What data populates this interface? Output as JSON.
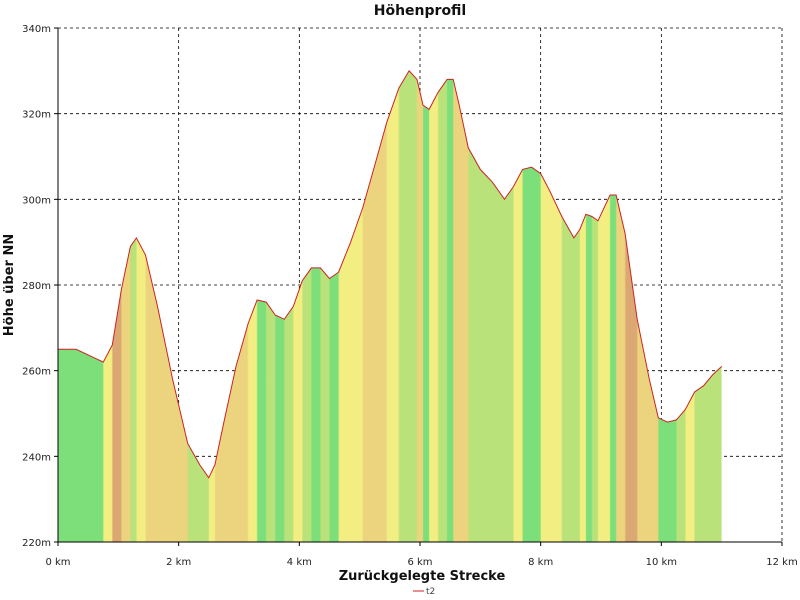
{
  "chart_data": {
    "type": "area",
    "title": "Höhenprofil",
    "xlabel": "Zurückgelegte Strecke",
    "ylabel": "Höhe über NN",
    "xlim": [
      0,
      12
    ],
    "ylim": [
      220,
      340
    ],
    "x_ticks": [
      0,
      2,
      4,
      6,
      8,
      10,
      12
    ],
    "x_tick_labels": [
      "0 km",
      "2 km",
      "4 km",
      "6 km",
      "8 km",
      "10 km",
      "12 km"
    ],
    "y_ticks": [
      220,
      240,
      260,
      280,
      300,
      320,
      340
    ],
    "y_tick_labels": [
      "220m",
      "240m",
      "260m",
      "280m",
      "300m",
      "320m",
      "340m"
    ],
    "grid": true,
    "legend_position": "bottom-center",
    "series": [
      {
        "name": "t2",
        "line_color": "#cc2222",
        "x": [
          0,
          0.3,
          0.6,
          0.75,
          0.9,
          1.05,
          1.2,
          1.3,
          1.45,
          1.65,
          1.9,
          2.15,
          2.35,
          2.5,
          2.6,
          2.75,
          2.95,
          3.15,
          3.3,
          3.45,
          3.6,
          3.75,
          3.9,
          4.05,
          4.2,
          4.35,
          4.5,
          4.65,
          4.85,
          5.05,
          5.25,
          5.45,
          5.65,
          5.82,
          5.95,
          6.05,
          6.15,
          6.3,
          6.45,
          6.55,
          6.65,
          6.8,
          7.0,
          7.2,
          7.4,
          7.55,
          7.7,
          7.85,
          8.0,
          8.15,
          8.35,
          8.55,
          8.65,
          8.75,
          8.85,
          8.95,
          9.05,
          9.15,
          9.25,
          9.4,
          9.6,
          9.8,
          9.95,
          10.1,
          10.25,
          10.4,
          10.55,
          10.7,
          10.85,
          11.0
        ],
        "y": [
          265,
          265,
          263,
          262,
          266,
          279,
          289,
          291,
          287,
          275,
          258,
          243,
          238,
          235,
          238,
          248,
          261,
          271,
          276.5,
          276,
          273,
          272,
          275,
          281,
          284,
          284,
          281.5,
          283,
          290,
          298,
          308,
          318,
          326,
          330,
          328,
          322,
          321,
          325,
          328,
          328,
          322,
          312,
          307,
          304,
          300,
          303,
          307,
          307.5,
          306,
          302,
          296,
          291,
          293,
          296.5,
          296,
          295,
          298,
          301,
          301,
          292,
          272,
          258,
          249,
          248,
          248.5,
          251,
          255,
          256.5,
          259,
          261
        ]
      }
    ]
  }
}
